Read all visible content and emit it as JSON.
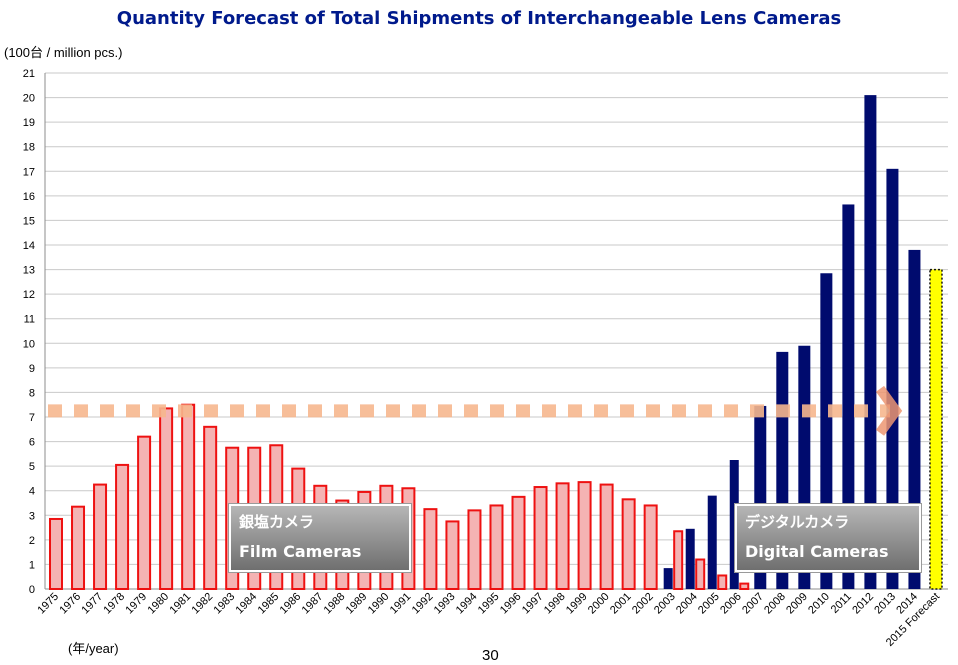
{
  "page": {
    "title": "Quantity Forecast of Total Shipments of Interchangeable Lens Cameras",
    "page_number": "30"
  },
  "labels": {
    "film_jp": "銀塩カメラ",
    "film_en": "Film Cameras",
    "digital_jp": "デジタルカメラ",
    "digital_en": "Digital Cameras"
  },
  "colors": {
    "film_fill": "#f4b3b3",
    "film_stroke": "#ee1111",
    "digital_fill": "#000b6e",
    "forecast_fill": "#ffff00",
    "dash": "#f7b78e",
    "arrow": "#ec9772",
    "title": "#001a8c"
  },
  "chart_data": {
    "type": "bar",
    "title": "Quantity Forecast of Total Shipments of Interchangeable Lens Cameras",
    "ylabel": "(100台 / million pcs.)",
    "xlabel": "(年/year)",
    "ylim": [
      0,
      21
    ],
    "yticks": [
      0,
      1,
      2,
      3,
      4,
      5,
      6,
      7,
      8,
      9,
      10,
      11,
      12,
      13,
      14,
      15,
      16,
      17,
      18,
      19,
      20,
      21
    ],
    "grid": true,
    "categories": [
      "1975",
      "1976",
      "1977",
      "1978",
      "1979",
      "1980",
      "1981",
      "1982",
      "1983",
      "1984",
      "1985",
      "1986",
      "1987",
      "1988",
      "1989",
      "1990",
      "1991",
      "1992",
      "1993",
      "1994",
      "1995",
      "1996",
      "1997",
      "1998",
      "1999",
      "2000",
      "2001",
      "2002",
      "2003",
      "2004",
      "2005",
      "2006",
      "2007",
      "2008",
      "2009",
      "2010",
      "2011",
      "2012",
      "2013",
      "2014",
      "2015 Forecast"
    ],
    "series": [
      {
        "name": "Film Cameras",
        "values": [
          2.85,
          3.35,
          4.25,
          5.05,
          6.2,
          7.35,
          7.5,
          6.6,
          5.75,
          5.75,
          5.85,
          4.9,
          4.2,
          3.6,
          3.95,
          4.2,
          4.1,
          3.25,
          2.75,
          3.2,
          3.4,
          3.75,
          4.15,
          4.3,
          4.35,
          4.25,
          3.65,
          3.4,
          2.35,
          1.2,
          0.55,
          0.22,
          null,
          null,
          null,
          null,
          null,
          null,
          null,
          null,
          null
        ]
      },
      {
        "name": "Digital Cameras",
        "values": [
          null,
          null,
          null,
          null,
          null,
          null,
          null,
          null,
          null,
          null,
          null,
          null,
          null,
          null,
          null,
          null,
          null,
          null,
          null,
          null,
          null,
          null,
          null,
          null,
          null,
          null,
          null,
          null,
          0.85,
          2.45,
          3.8,
          5.25,
          7.45,
          9.65,
          9.9,
          12.85,
          15.65,
          20.1,
          17.1,
          13.8,
          null
        ]
      },
      {
        "name": "Forecast",
        "values": [
          null,
          null,
          null,
          null,
          null,
          null,
          null,
          null,
          null,
          null,
          null,
          null,
          null,
          null,
          null,
          null,
          null,
          null,
          null,
          null,
          null,
          null,
          null,
          null,
          null,
          null,
          null,
          null,
          null,
          null,
          null,
          null,
          null,
          null,
          null,
          null,
          null,
          null,
          null,
          null,
          13.0
        ]
      }
    ],
    "annotations": {
      "reference_line_value": 7.25,
      "film_label": "銀塩カメラ / Film Cameras",
      "digital_label": "デジタルカメラ / Digital Cameras"
    }
  }
}
